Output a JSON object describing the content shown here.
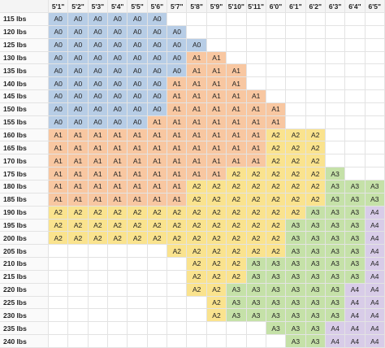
{
  "table": {
    "columns": [
      "5'1\"",
      "5'2\"",
      "5'3\"",
      "5'4\"",
      "5'5\"",
      "5'6\"",
      "5'7\"",
      "5'8\"",
      "5'9\"",
      "5'10\"",
      "5'11\"",
      "6'0\"",
      "6'1\"",
      "6'2\"",
      "6'3\"",
      "6'4\"",
      "6'5\""
    ],
    "row_labels": [
      "115 lbs",
      "120 lbs",
      "125 lbs",
      "130 lbs",
      "135 lbs",
      "140 lbs",
      "145 lbs",
      "150 lbs",
      "155 lbs",
      "160 lbs",
      "165 lbs",
      "170 lbs",
      "175 lbs",
      "180 lbs",
      "185 lbs",
      "190 lbs",
      "195 lbs",
      "200 lbs",
      "205 lbs",
      "210 lbs",
      "215 lbs",
      "220 lbs",
      "225 lbs",
      "230 lbs",
      "235 lbs",
      "240 lbs"
    ],
    "rows": [
      [
        "A0",
        "A0",
        "A0",
        "A0",
        "A0",
        "A0",
        null,
        null,
        null,
        null,
        null,
        null,
        null,
        null,
        null,
        null,
        null
      ],
      [
        "A0",
        "A0",
        "A0",
        "A0",
        "A0",
        "A0",
        "A0",
        null,
        null,
        null,
        null,
        null,
        null,
        null,
        null,
        null,
        null
      ],
      [
        "A0",
        "A0",
        "A0",
        "A0",
        "A0",
        "A0",
        "A0",
        "A0",
        null,
        null,
        null,
        null,
        null,
        null,
        null,
        null,
        null
      ],
      [
        "A0",
        "A0",
        "A0",
        "A0",
        "A0",
        "A0",
        "A0",
        "A1",
        "A1",
        null,
        null,
        null,
        null,
        null,
        null,
        null,
        null
      ],
      [
        "A0",
        "A0",
        "A0",
        "A0",
        "A0",
        "A0",
        "A0",
        "A1",
        "A1",
        "A1",
        null,
        null,
        null,
        null,
        null,
        null,
        null
      ],
      [
        "A0",
        "A0",
        "A0",
        "A0",
        "A0",
        "A0",
        "A1",
        "A1",
        "A1",
        "A1",
        null,
        null,
        null,
        null,
        null,
        null,
        null
      ],
      [
        "A0",
        "A0",
        "A0",
        "A0",
        "A0",
        "A0",
        "A1",
        "A1",
        "A1",
        "A1",
        "A1",
        null,
        null,
        null,
        null,
        null,
        null
      ],
      [
        "A0",
        "A0",
        "A0",
        "A0",
        "A0",
        "A0",
        "A1",
        "A1",
        "A1",
        "A1",
        "A1",
        "A1",
        null,
        null,
        null,
        null,
        null
      ],
      [
        "A0",
        "A0",
        "A0",
        "A0",
        "A0",
        "A1",
        "A1",
        "A1",
        "A1",
        "A1",
        "A1",
        "A1",
        null,
        null,
        null,
        null,
        null
      ],
      [
        "A1",
        "A1",
        "A1",
        "A1",
        "A1",
        "A1",
        "A1",
        "A1",
        "A1",
        "A1",
        "A1",
        "A2",
        "A2",
        "A2",
        null,
        null,
        null
      ],
      [
        "A1",
        "A1",
        "A1",
        "A1",
        "A1",
        "A1",
        "A1",
        "A1",
        "A1",
        "A1",
        "A1",
        "A2",
        "A2",
        "A2",
        null,
        null,
        null
      ],
      [
        "A1",
        "A1",
        "A1",
        "A1",
        "A1",
        "A1",
        "A1",
        "A1",
        "A1",
        "A1",
        "A1",
        "A2",
        "A2",
        "A2",
        null,
        null,
        null
      ],
      [
        "A1",
        "A1",
        "A1",
        "A1",
        "A1",
        "A1",
        "A1",
        "A1",
        "A1",
        "A2",
        "A2",
        "A2",
        "A2",
        "A2",
        "A3",
        null,
        null
      ],
      [
        "A1",
        "A1",
        "A1",
        "A1",
        "A1",
        "A1",
        "A1",
        "A2",
        "A2",
        "A2",
        "A2",
        "A2",
        "A2",
        "A2",
        "A3",
        "A3",
        "A3"
      ],
      [
        "A1",
        "A1",
        "A1",
        "A1",
        "A1",
        "A1",
        "A1",
        "A2",
        "A2",
        "A2",
        "A2",
        "A2",
        "A2",
        "A2",
        "A3",
        "A3",
        "A3"
      ],
      [
        "A2",
        "A2",
        "A2",
        "A2",
        "A2",
        "A2",
        "A2",
        "A2",
        "A2",
        "A2",
        "A2",
        "A2",
        "A2",
        "A3",
        "A3",
        "A3",
        "A4"
      ],
      [
        "A2",
        "A2",
        "A2",
        "A2",
        "A2",
        "A2",
        "A2",
        "A2",
        "A2",
        "A2",
        "A2",
        "A2",
        "A3",
        "A3",
        "A3",
        "A3",
        "A4"
      ],
      [
        "A2",
        "A2",
        "A2",
        "A2",
        "A2",
        "A2",
        "A2",
        "A2",
        "A2",
        "A2",
        "A2",
        "A2",
        "A3",
        "A3",
        "A3",
        "A3",
        "A4"
      ],
      [
        null,
        null,
        null,
        null,
        null,
        null,
        "A2",
        "A2",
        "A2",
        "A2",
        "A2",
        "A2",
        "A3",
        "A3",
        "A3",
        "A3",
        "A4"
      ],
      [
        null,
        null,
        null,
        null,
        null,
        null,
        null,
        "A2",
        "A2",
        "A2",
        "A3",
        "A3",
        "A3",
        "A3",
        "A3",
        "A3",
        "A4"
      ],
      [
        null,
        null,
        null,
        null,
        null,
        null,
        null,
        "A2",
        "A2",
        "A2",
        "A3",
        "A3",
        "A3",
        "A3",
        "A3",
        "A3",
        "A4"
      ],
      [
        null,
        null,
        null,
        null,
        null,
        null,
        null,
        "A2",
        "A2",
        "A3",
        "A3",
        "A3",
        "A3",
        "A3",
        "A3",
        "A4",
        "A4"
      ],
      [
        null,
        null,
        null,
        null,
        null,
        null,
        null,
        null,
        "A2",
        "A3",
        "A3",
        "A3",
        "A3",
        "A3",
        "A3",
        "A4",
        "A4"
      ],
      [
        null,
        null,
        null,
        null,
        null,
        null,
        null,
        null,
        "A2",
        "A3",
        "A3",
        "A3",
        "A3",
        "A3",
        "A3",
        "A4",
        "A4"
      ],
      [
        null,
        null,
        null,
        null,
        null,
        null,
        null,
        null,
        null,
        null,
        null,
        "A3",
        "A3",
        "A3",
        "A4",
        "A4",
        "A4"
      ],
      [
        null,
        null,
        null,
        null,
        null,
        null,
        null,
        null,
        null,
        null,
        null,
        null,
        "A3",
        "A3",
        "A4",
        "A4",
        "A4"
      ]
    ]
  }
}
